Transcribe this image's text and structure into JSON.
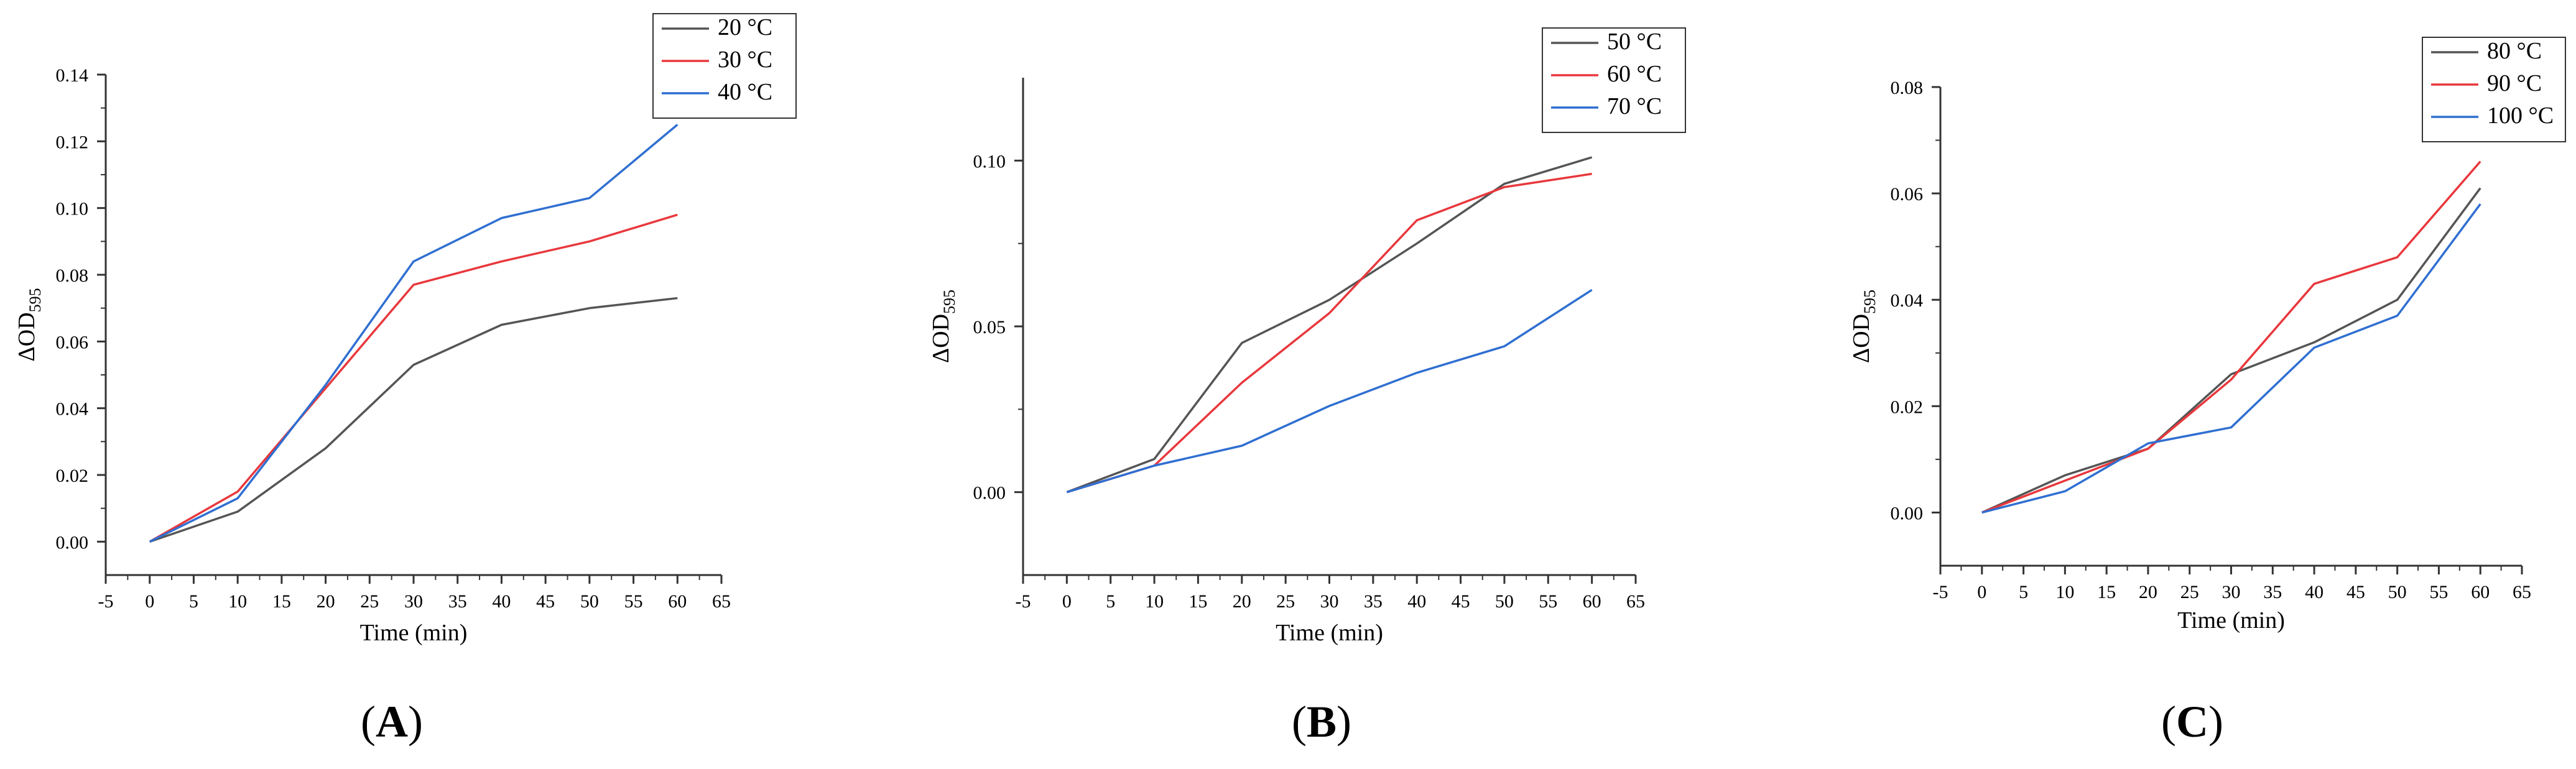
{
  "chart_data": [
    {
      "type": "line",
      "panel_label": "A",
      "xlabel": "Time (min)",
      "ylabel": "ΔOD",
      "ylabel_sub": "595",
      "xlim": [
        -5,
        65
      ],
      "ylim": [
        -0.01,
        0.14
      ],
      "xticks": [
        -5,
        0,
        5,
        10,
        15,
        20,
        25,
        30,
        35,
        40,
        45,
        50,
        55,
        60,
        65
      ],
      "xtick_labels": [
        "-5",
        "0",
        "5",
        "10",
        "15",
        "20",
        "25",
        "30",
        "35",
        "40",
        "45",
        "50",
        "55",
        "60",
        "65"
      ],
      "yticks": [
        0,
        0.02,
        0.04,
        0.06,
        0.08,
        0.1,
        0.12,
        0.14
      ],
      "ytick_labels": [
        "0.00",
        "0.02",
        "0.04",
        "0.06",
        "0.08",
        "0.10",
        "0.12",
        "0.14"
      ],
      "x": [
        0,
        10,
        20,
        30,
        40,
        50,
        60
      ],
      "series": [
        {
          "name": "20 °C",
          "color": "#555555",
          "values": [
            0,
            0.009,
            0.028,
            0.053,
            0.065,
            0.07,
            0.073
          ]
        },
        {
          "name": "30 °C",
          "color": "#e8383d",
          "values": [
            0,
            0.015,
            0.046,
            0.077,
            0.084,
            0.09,
            0.098
          ]
        },
        {
          "name": "40 °C",
          "color": "#2f6fd1",
          "values": [
            0,
            0.013,
            0.047,
            0.084,
            0.097,
            0.103,
            0.125
          ]
        }
      ],
      "legend_position": "top-right"
    },
    {
      "type": "line",
      "panel_label": "B",
      "xlabel": "Time (min)",
      "ylabel": "ΔOD",
      "ylabel_sub": "595",
      "xlim": [
        -5,
        65
      ],
      "ylim": [
        -0.025,
        0.125
      ],
      "xticks": [
        -5,
        0,
        5,
        10,
        15,
        20,
        25,
        30,
        35,
        40,
        45,
        50,
        55,
        60,
        65
      ],
      "xtick_labels": [
        "-5",
        "0",
        "5",
        "10",
        "15",
        "20",
        "25",
        "30",
        "35",
        "40",
        "45",
        "50",
        "55",
        "60",
        "65"
      ],
      "yticks": [
        0,
        0.05,
        0.1
      ],
      "ytick_labels": [
        "0.00",
        "0.05",
        "0.10"
      ],
      "x": [
        0,
        10,
        20,
        30,
        40,
        50,
        60
      ],
      "series": [
        {
          "name": "50 °C",
          "color": "#555555",
          "values": [
            0,
            0.01,
            0.045,
            0.058,
            0.075,
            0.093,
            0.101
          ]
        },
        {
          "name": "60 °C",
          "color": "#e8383d",
          "values": [
            0,
            0.008,
            0.033,
            0.054,
            0.082,
            0.092,
            0.096
          ]
        },
        {
          "name": "70 °C",
          "color": "#2f6fd1",
          "values": [
            0,
            0.008,
            0.014,
            0.026,
            0.036,
            0.044,
            0.061
          ]
        }
      ],
      "legend_position": "top-right"
    },
    {
      "type": "line",
      "panel_label": "C",
      "xlabel": "Time (min)",
      "ylabel": "ΔOD",
      "ylabel_sub": "595",
      "xlim": [
        -5,
        65
      ],
      "ylim": [
        -0.01,
        0.08
      ],
      "xticks": [
        -5,
        0,
        5,
        10,
        15,
        20,
        25,
        30,
        35,
        40,
        45,
        50,
        55,
        60,
        65
      ],
      "xtick_labels": [
        "-5",
        "0",
        "5",
        "10",
        "15",
        "20",
        "25",
        "30",
        "35",
        "40",
        "45",
        "50",
        "55",
        "60",
        "65"
      ],
      "yticks": [
        0,
        0.02,
        0.04,
        0.06,
        0.08
      ],
      "ytick_labels": [
        "0.00",
        "0.02",
        "0.04",
        "0.06",
        "0.08"
      ],
      "x": [
        0,
        10,
        20,
        30,
        40,
        50,
        60
      ],
      "series": [
        {
          "name": "80 °C",
          "color": "#555555",
          "values": [
            0,
            0.007,
            0.012,
            0.026,
            0.032,
            0.04,
            0.061
          ]
        },
        {
          "name": "90 °C",
          "color": "#e8383d",
          "values": [
            0,
            0.006,
            0.012,
            0.025,
            0.043,
            0.048,
            0.066
          ]
        },
        {
          "name": "100 °C",
          "color": "#2f6fd1",
          "values": [
            0,
            0.004,
            0.013,
            0.016,
            0.031,
            0.037,
            0.058
          ]
        }
      ],
      "legend_position": "top-right"
    }
  ]
}
